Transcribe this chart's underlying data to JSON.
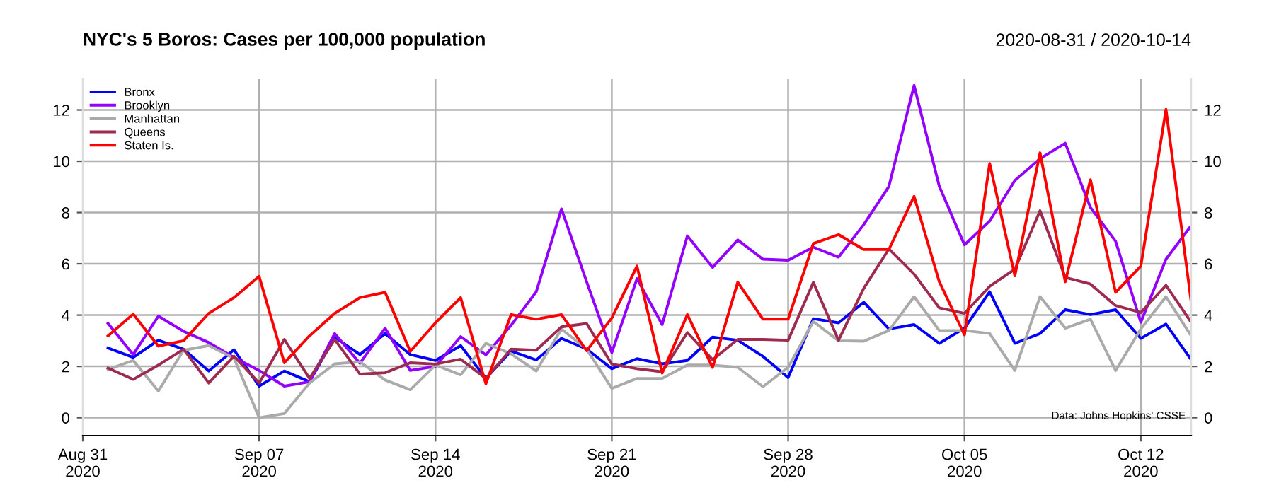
{
  "chart_data": {
    "type": "line",
    "title": "NYC's 5 Boros: Cases per 100,000 population",
    "subtitle": "2020-08-31 / 2020-10-14",
    "annotations": [
      "Data: Johns Hopkins' CSSE"
    ],
    "x": [
      "2020-09-01",
      "2020-09-02",
      "2020-09-03",
      "2020-09-04",
      "2020-09-05",
      "2020-09-06",
      "2020-09-07",
      "2020-09-08",
      "2020-09-09",
      "2020-09-10",
      "2020-09-11",
      "2020-09-12",
      "2020-09-13",
      "2020-09-14",
      "2020-09-15",
      "2020-09-16",
      "2020-09-17",
      "2020-09-18",
      "2020-09-19",
      "2020-09-20",
      "2020-09-21",
      "2020-09-22",
      "2020-09-23",
      "2020-09-24",
      "2020-09-25",
      "2020-09-26",
      "2020-09-27",
      "2020-09-28",
      "2020-09-29",
      "2020-09-30",
      "2020-10-01",
      "2020-10-02",
      "2020-10-03",
      "2020-10-04",
      "2020-10-05",
      "2020-10-06",
      "2020-10-07",
      "2020-10-08",
      "2020-10-09",
      "2020-10-10",
      "2020-10-11",
      "2020-10-12",
      "2020-10-13",
      "2020-10-14"
    ],
    "series": [
      {
        "name": "Bronx",
        "color": "#0000ff",
        "values": [
          2.72,
          2.35,
          3.02,
          2.67,
          1.82,
          2.65,
          1.23,
          1.82,
          1.4,
          3.14,
          2.46,
          3.28,
          2.46,
          2.23,
          2.81,
          1.53,
          2.6,
          2.25,
          3.09,
          2.68,
          1.91,
          2.3,
          2.1,
          2.23,
          3.14,
          3.02,
          2.39,
          1.56,
          3.86,
          3.7,
          4.5,
          3.46,
          3.63,
          2.9,
          3.49,
          4.91,
          2.9,
          3.28,
          4.21,
          4.02,
          4.21,
          3.09,
          3.65,
          2.26
        ]
      },
      {
        "name": "Brooklyn",
        "color": "#9400ff",
        "values": [
          3.68,
          2.46,
          3.96,
          3.37,
          2.93,
          2.35,
          1.84,
          1.23,
          1.4,
          3.28,
          2.12,
          3.49,
          1.84,
          2.0,
          3.16,
          2.45,
          3.6,
          4.91,
          8.14,
          5.3,
          2.54,
          5.42,
          3.63,
          7.09,
          5.86,
          6.93,
          6.18,
          6.14,
          6.65,
          6.26,
          7.53,
          9.02,
          12.96,
          9.02,
          6.74,
          7.67,
          9.25,
          10.1,
          10.7,
          8.2,
          6.88,
          3.72,
          6.18,
          7.49
        ]
      },
      {
        "name": "Manhattan",
        "color": "#aaaaaa",
        "values": [
          1.88,
          2.23,
          1.04,
          2.63,
          2.81,
          2.32,
          0.0,
          0.16,
          1.35,
          2.1,
          2.18,
          1.47,
          1.09,
          2.05,
          1.67,
          2.9,
          2.49,
          1.82,
          3.46,
          2.67,
          1.14,
          1.53,
          1.53,
          2.05,
          2.05,
          1.96,
          1.21,
          1.96,
          3.75,
          3.0,
          2.98,
          3.4,
          4.72,
          3.4,
          3.4,
          3.28,
          1.84,
          4.72,
          3.49,
          3.84,
          1.84,
          3.46,
          4.72,
          3.19
        ]
      },
      {
        "name": "Queens",
        "color": "#9e2a4f",
        "values": [
          1.93,
          1.49,
          2.05,
          2.67,
          1.35,
          2.4,
          1.35,
          3.05,
          1.53,
          3.05,
          1.7,
          1.75,
          2.14,
          2.09,
          2.28,
          1.53,
          2.67,
          2.63,
          3.54,
          3.67,
          2.09,
          1.91,
          1.79,
          3.32,
          2.26,
          3.05,
          3.05,
          3.02,
          5.28,
          3.02,
          5.04,
          6.58,
          5.6,
          4.28,
          4.07,
          5.12,
          5.79,
          8.07,
          5.47,
          5.21,
          4.37,
          4.1,
          5.16,
          3.72
        ]
      },
      {
        "name": "Staten Is.",
        "color": "#ff0000",
        "values": [
          3.19,
          4.04,
          2.79,
          3.0,
          4.07,
          4.68,
          5.51,
          2.14,
          3.19,
          4.07,
          4.68,
          4.89,
          2.58,
          3.7,
          4.68,
          1.32,
          4.02,
          3.84,
          4.02,
          2.61,
          3.89,
          5.91,
          1.74,
          4.02,
          1.96,
          5.28,
          3.84,
          3.84,
          6.79,
          7.14,
          6.56,
          6.56,
          8.63,
          5.3,
          3.23,
          9.91,
          5.53,
          10.33,
          5.3,
          9.28,
          4.89,
          5.91,
          12.02,
          4.51
        ]
      }
    ],
    "xlim": [
      "2020-08-31",
      "2020-10-14"
    ],
    "xticks": [
      {
        "value": "2020-08-31",
        "label": "Aug 31\n2020"
      },
      {
        "value": "2020-09-07",
        "label": "Sep 07\n2020"
      },
      {
        "value": "2020-09-14",
        "label": "Sep 14\n2020"
      },
      {
        "value": "2020-09-21",
        "label": "Sep 21\n2020"
      },
      {
        "value": "2020-09-28",
        "label": "Sep 28\n2020"
      },
      {
        "value": "2020-10-05",
        "label": "Oct 05\n2020"
      },
      {
        "value": "2020-10-12",
        "label": "Oct 12\n2020"
      }
    ],
    "ylim": [
      -0.7,
      13.2
    ],
    "yticks": [
      0,
      2,
      4,
      6,
      8,
      10,
      12
    ],
    "y2lim": [
      -0.7,
      13.2
    ],
    "y2ticks": [
      0,
      2,
      4,
      6,
      8,
      10,
      12
    ],
    "grid": true,
    "legend": "top left",
    "line_style": "solid"
  }
}
